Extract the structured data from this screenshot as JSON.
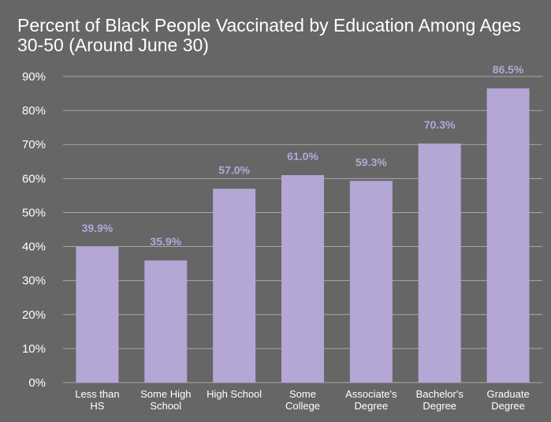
{
  "chart_data": {
    "type": "bar",
    "title": "Percent of Black People Vaccinated by Education Among Ages 30-50 (Around June 30)",
    "categories": [
      [
        "Less than",
        "HS"
      ],
      [
        "Some High",
        "School"
      ],
      [
        "High School"
      ],
      [
        "Some",
        "College"
      ],
      [
        "Associate's",
        "Degree"
      ],
      [
        "Bachelor's",
        "Degree"
      ],
      [
        "Graduate",
        "Degree"
      ]
    ],
    "values": [
      39.9,
      35.9,
      57.0,
      61.0,
      59.3,
      70.3,
      86.5
    ],
    "data_labels": [
      "39.9%",
      "35.9%",
      "57.0%",
      "61.0%",
      "59.3%",
      "70.3%",
      "86.5%"
    ],
    "ylim": [
      0,
      90
    ],
    "yticks": [
      0,
      10,
      20,
      30,
      40,
      50,
      60,
      70,
      80,
      90
    ],
    "ytick_labels": [
      "0%",
      "10%",
      "20%",
      "30%",
      "40%",
      "50%",
      "60%",
      "70%",
      "80%",
      "90%"
    ],
    "xlabel": "",
    "ylabel": "",
    "grid": true,
    "legend": "none",
    "colors": {
      "background": "#666666",
      "bar": "#b4a7d6",
      "data_label": "#b4a7d6",
      "text": "#ffffff",
      "grid": "#a8a8a8"
    }
  }
}
